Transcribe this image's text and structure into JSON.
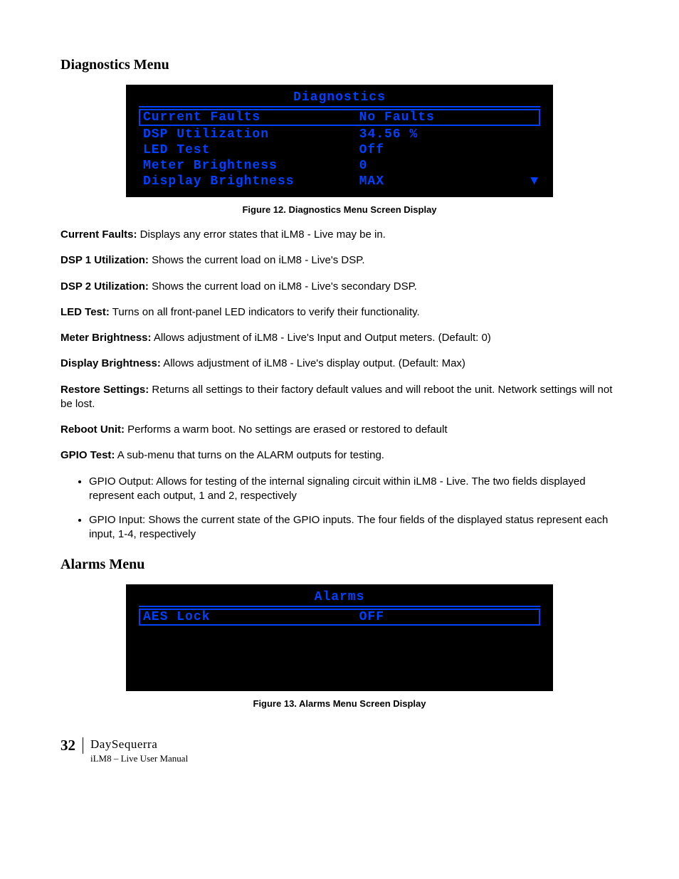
{
  "section1": {
    "heading": "Diagnostics Menu"
  },
  "diag_screen": {
    "title": "Diagnostics",
    "rows": [
      {
        "label": "Current Faults",
        "value": "No Faults",
        "selected": true
      },
      {
        "label": "DSP Utilization",
        "value": "34.56 %",
        "selected": false
      },
      {
        "label": "LED Test",
        "value": "Off",
        "selected": false
      },
      {
        "label": "Meter Brightness",
        "value": "0",
        "selected": false
      },
      {
        "label": "Display Brightness",
        "value": "MAX",
        "selected": false
      }
    ],
    "arrow": "▼",
    "colors": {
      "bg": "#000000",
      "fg": "#0040ff"
    },
    "font": {
      "family": "Courier New",
      "size_pt": 14,
      "weight": "bold"
    }
  },
  "fig12": "Figure 12.    Diagnostics Menu Screen Display",
  "defs": [
    {
      "term": "Current Faults:",
      "text": " Displays any error states that iLM8 - Live may be in."
    },
    {
      "term": "DSP 1 Utilization:",
      "text": " Shows the current load on iLM8 - Live's DSP."
    },
    {
      "term": "DSP 2 Utilization:",
      "text": " Shows the current load on iLM8 - Live's secondary DSP."
    },
    {
      "term": "LED Test:",
      "text": " Turns on all front-panel LED indicators to verify their functionality."
    },
    {
      "term": "Meter Brightness:",
      "text": " Allows adjustment of iLM8 - Live's Input and Output meters. (Default: 0)"
    },
    {
      "term": "Display Brightness:",
      "text": " Allows adjustment of iLM8 - Live's display output. (Default: Max)"
    },
    {
      "term": "Restore Settings:",
      "text": " Returns all settings to their factory default values and will reboot the unit. Network settings will not be lost."
    },
    {
      "term": "Reboot Unit:",
      "text": " Performs a warm boot. No settings are erased or restored to default"
    },
    {
      "term": "GPIO Test:",
      "text": " A sub-menu that turns on the ALARM outputs for testing."
    }
  ],
  "bullets": [
    "GPIO Output:  Allows for testing of the internal signaling circuit within iLM8 - Live. The two fields displayed represent each output, 1 and 2, respectively",
    "GPIO Input: Shows the current state of the GPIO inputs. The four fields of the displayed status represent each input, 1-4, respectively"
  ],
  "section2": {
    "heading": "Alarms Menu"
  },
  "alarms_screen": {
    "title": "Alarms",
    "rows": [
      {
        "label": "AES Lock",
        "value": "OFF",
        "selected": true
      }
    ],
    "colors": {
      "bg": "#000000",
      "fg": "#0040ff"
    }
  },
  "fig13": "Figure 13.    Alarms Menu Screen Display",
  "footer": {
    "page": "32",
    "brand": "DaySequerra",
    "sub": "iLM8 – Live User Manual"
  }
}
